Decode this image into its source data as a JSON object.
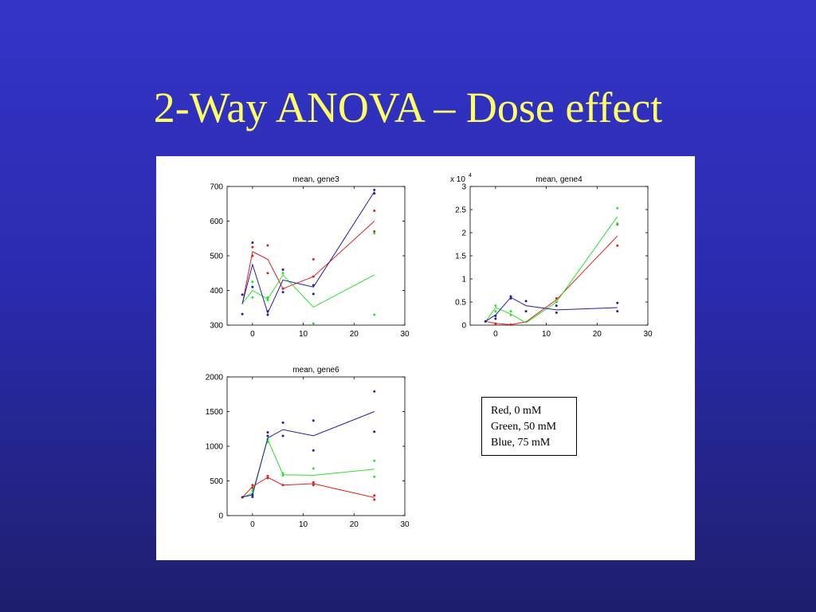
{
  "slide": {
    "title": "2-Way ANOVA – Dose effect"
  },
  "legend": {
    "entries": [
      "Red, 0 mM",
      "Green, 50 mM",
      "Blue, 75 mM"
    ]
  },
  "colors": {
    "red": "#e02020",
    "green": "#30e030",
    "blue": "#1f1fa0",
    "title_text": "#ffff66"
  },
  "chart_data": [
    {
      "type": "line",
      "title": "mean, gene3",
      "xlim": [
        -5,
        30
      ],
      "ylim": [
        300,
        700
      ],
      "xticks": [
        0,
        10,
        20,
        30
      ],
      "yticks": [
        300,
        400,
        500,
        600,
        700
      ],
      "exponent_label": "",
      "x": [
        -2,
        0,
        3,
        6,
        12,
        24
      ],
      "series": [
        {
          "color": "red",
          "values": [
            360,
            512,
            490,
            405,
            440,
            600
          ],
          "points": [
            [
              0,
              500
            ],
            [
              0,
              525
            ],
            [
              3,
              530
            ],
            [
              3,
              450
            ],
            [
              6,
              405
            ],
            [
              12,
              490
            ],
            [
              12,
              440
            ],
            [
              24,
              630
            ],
            [
              24,
              570
            ]
          ]
        },
        {
          "color": "green",
          "values": [
            362,
            400,
            375,
            445,
            352,
            445
          ],
          "points": [
            [
              0,
              425
            ],
            [
              0,
              380
            ],
            [
              3,
              380
            ],
            [
              3,
              372
            ],
            [
              6,
              450
            ],
            [
              12,
              305
            ],
            [
              24,
              565
            ],
            [
              24,
              330
            ]
          ]
        },
        {
          "color": "blue",
          "values": [
            362,
            475,
            335,
            430,
            410,
            685
          ],
          "points": [
            [
              -2,
              388
            ],
            [
              -2,
              332
            ],
            [
              0,
              538
            ],
            [
              0,
              410
            ],
            [
              3,
              340
            ],
            [
              3,
              330
            ],
            [
              6,
              460
            ],
            [
              6,
              395
            ],
            [
              12,
              415
            ],
            [
              12,
              390
            ],
            [
              24,
              690
            ],
            [
              24,
              680
            ]
          ]
        }
      ]
    },
    {
      "type": "line",
      "title": "mean, gene4",
      "xlim": [
        -5,
        30
      ],
      "ylim": [
        0,
        3
      ],
      "xticks": [
        0,
        10,
        20,
        30
      ],
      "yticks": [
        0,
        0.5,
        1,
        1.5,
        2,
        2.5,
        3
      ],
      "exponent_label": "x 10",
      "exponent_power": "4",
      "x": [
        -2,
        0,
        3,
        6,
        12,
        24
      ],
      "series": [
        {
          "color": "red",
          "values": [
            0.08,
            0.04,
            0.01,
            0.07,
            0.55,
            1.93
          ],
          "points": [
            [
              0,
              0.03
            ],
            [
              3,
              0.01
            ],
            [
              12,
              0.58
            ],
            [
              24,
              2.18
            ],
            [
              24,
              1.72
            ]
          ]
        },
        {
          "color": "green",
          "values": [
            0.07,
            0.38,
            0.24,
            0.05,
            0.5,
            2.35
          ],
          "points": [
            [
              0,
              0.42
            ],
            [
              0,
              0.3
            ],
            [
              3,
              0.3
            ],
            [
              3,
              0.22
            ],
            [
              12,
              0.5
            ],
            [
              24,
              2.53
            ],
            [
              24,
              2.2
            ]
          ]
        },
        {
          "color": "blue",
          "values": [
            0.08,
            0.22,
            0.6,
            0.42,
            0.33,
            0.38
          ],
          "points": [
            [
              -2,
              0.08
            ],
            [
              0,
              0.2
            ],
            [
              0,
              0.14
            ],
            [
              3,
              0.62
            ],
            [
              3,
              0.58
            ],
            [
              6,
              0.52
            ],
            [
              6,
              0.3
            ],
            [
              12,
              0.42
            ],
            [
              12,
              0.27
            ],
            [
              24,
              0.48
            ],
            [
              24,
              0.3
            ]
          ]
        }
      ]
    },
    {
      "type": "line",
      "title": "mean, gene6",
      "xlim": [
        -5,
        30
      ],
      "ylim": [
        0,
        2000
      ],
      "xticks": [
        0,
        10,
        20,
        30
      ],
      "yticks": [
        0,
        500,
        1000,
        1500,
        2000
      ],
      "exponent_label": "",
      "x": [
        -2,
        0,
        3,
        6,
        12,
        24
      ],
      "series": [
        {
          "color": "red",
          "values": [
            260,
            420,
            550,
            440,
            460,
            260
          ],
          "points": [
            [
              0,
              440
            ],
            [
              0,
              400
            ],
            [
              3,
              570
            ],
            [
              3,
              540
            ],
            [
              6,
              440
            ],
            [
              12,
              480
            ],
            [
              12,
              440
            ],
            [
              24,
              290
            ],
            [
              24,
              230
            ]
          ]
        },
        {
          "color": "green",
          "values": [
            260,
            330,
            1100,
            590,
            580,
            670
          ],
          "points": [
            [
              0,
              360
            ],
            [
              0,
              300
            ],
            [
              3,
              1100
            ],
            [
              3,
              1060
            ],
            [
              6,
              610
            ],
            [
              6,
              580
            ],
            [
              12,
              680
            ],
            [
              24,
              790
            ],
            [
              24,
              560
            ]
          ]
        },
        {
          "color": "blue",
          "values": [
            265,
            300,
            1120,
            1240,
            1150,
            1500
          ],
          "points": [
            [
              -2,
              265
            ],
            [
              0,
              300
            ],
            [
              0,
              270
            ],
            [
              3,
              1200
            ],
            [
              3,
              1150
            ],
            [
              6,
              1340
            ],
            [
              6,
              1150
            ],
            [
              12,
              1370
            ],
            [
              12,
              940
            ],
            [
              24,
              1790
            ],
            [
              24,
              1210
            ]
          ]
        }
      ]
    }
  ]
}
